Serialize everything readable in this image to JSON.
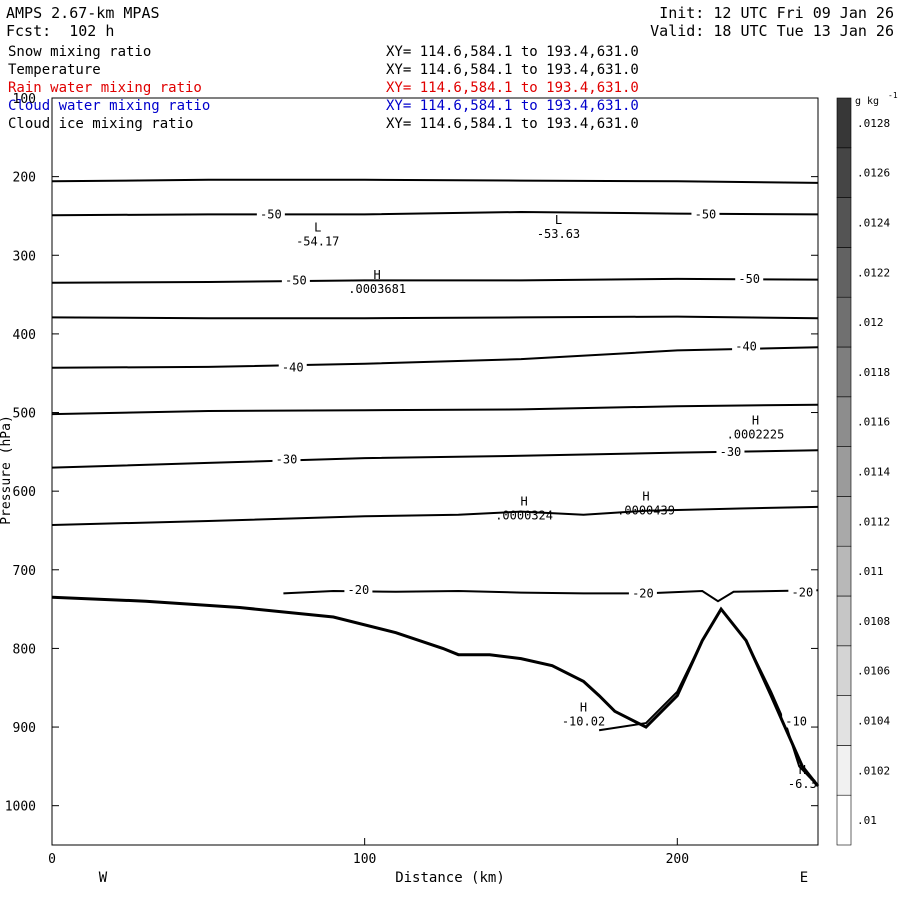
{
  "header": {
    "model": "AMPS 2.67-km MPAS",
    "forecast": "Fcst:  102 h",
    "init": "Init: 12 UTC Fri 09 Jan 26",
    "valid": "Valid: 18 UTC Tue 13 Jan 26"
  },
  "fields": [
    {
      "name": "Snow mixing ratio",
      "xy": "XY= 114.6,584.1 to 193.4,631.0",
      "color": "#000000"
    },
    {
      "name": "Temperature",
      "xy": "XY= 114.6,584.1 to 193.4,631.0",
      "color": "#000000"
    },
    {
      "name": "Rain water mixing ratio",
      "xy": "XY= 114.6,584.1 to 193.4,631.0",
      "color": "#e00000"
    },
    {
      "name": "Cloud water mixing ratio",
      "xy": "XY= 114.6,584.1 to 193.4,631.0",
      "color": "#0000cc"
    },
    {
      "name": "Cloud ice mixing ratio",
      "xy": "XY= 114.6,584.1 to 193.4,631.0",
      "color": "#000000"
    }
  ],
  "chart_data": {
    "type": "cross-section contour",
    "xlabel": "Distance (km)",
    "ylabel": "Pressure (hPa)",
    "xlim": [
      0,
      245
    ],
    "ylim": [
      1050,
      100
    ],
    "x_ticks": [
      0,
      100,
      200
    ],
    "y_ticks": [
      200,
      300,
      400,
      500,
      600,
      700,
      800,
      900,
      1000
    ],
    "y_tick_top_label": "100",
    "west_label": "W",
    "east_label": "E",
    "temperature_contours": [
      {
        "label": "",
        "points": [
          [
            0,
            206
          ],
          [
            50,
            204
          ],
          [
            100,
            204
          ],
          [
            150,
            205
          ],
          [
            200,
            206
          ],
          [
            245,
            208
          ]
        ]
      },
      {
        "label": "-50",
        "label_positions": [
          [
            70,
            248
          ],
          [
            209,
            248
          ]
        ],
        "points": [
          [
            0,
            249
          ],
          [
            50,
            248
          ],
          [
            100,
            248
          ],
          [
            150,
            245
          ],
          [
            200,
            247
          ],
          [
            245,
            248
          ]
        ]
      },
      {
        "label": "-50",
        "label_positions": [
          [
            78,
            332
          ],
          [
            223,
            330
          ]
        ],
        "points": [
          [
            0,
            335
          ],
          [
            50,
            334
          ],
          [
            100,
            332
          ],
          [
            150,
            332
          ],
          [
            200,
            330
          ],
          [
            245,
            331
          ]
        ]
      },
      {
        "label": "",
        "points": [
          [
            0,
            379
          ],
          [
            50,
            380
          ],
          [
            100,
            380
          ],
          [
            150,
            379
          ],
          [
            200,
            378
          ],
          [
            245,
            380
          ]
        ]
      },
      {
        "label": "-40",
        "label_positions": [
          [
            77,
            443
          ],
          [
            222,
            416
          ]
        ],
        "points": [
          [
            0,
            443
          ],
          [
            50,
            442
          ],
          [
            100,
            438
          ],
          [
            150,
            432
          ],
          [
            200,
            421
          ],
          [
            245,
            417
          ]
        ]
      },
      {
        "label": "",
        "points": [
          [
            0,
            502
          ],
          [
            50,
            498
          ],
          [
            100,
            497
          ],
          [
            150,
            496
          ],
          [
            200,
            492
          ],
          [
            245,
            490
          ]
        ]
      },
      {
        "label": "-30",
        "label_positions": [
          [
            75,
            560
          ],
          [
            217,
            550
          ]
        ],
        "points": [
          [
            0,
            570
          ],
          [
            50,
            564
          ],
          [
            100,
            558
          ],
          [
            150,
            555
          ],
          [
            200,
            551
          ],
          [
            245,
            548
          ]
        ]
      },
      {
        "label": "",
        "points": [
          [
            0,
            643
          ],
          [
            50,
            638
          ],
          [
            100,
            632
          ],
          [
            130,
            630
          ],
          [
            150,
            626
          ],
          [
            170,
            630
          ],
          [
            190,
            625
          ],
          [
            220,
            622
          ],
          [
            245,
            620
          ]
        ]
      },
      {
        "label": "-20",
        "label_positions": [
          [
            98,
            726
          ],
          [
            189,
            730
          ],
          [
            240,
            729
          ]
        ],
        "points": [
          [
            74,
            730
          ],
          [
            90,
            727
          ],
          [
            110,
            728
          ],
          [
            130,
            727
          ],
          [
            150,
            729
          ],
          [
            170,
            730
          ],
          [
            190,
            730
          ],
          [
            208,
            727
          ],
          [
            213,
            740
          ],
          [
            218,
            728
          ],
          [
            245,
            726
          ]
        ]
      },
      {
        "label": "-10",
        "label_positions": [
          [
            238,
            893
          ]
        ],
        "points": [
          [
            175,
            904
          ],
          [
            190,
            895
          ],
          [
            200,
            855
          ],
          [
            208,
            790
          ],
          [
            214,
            750
          ],
          [
            222,
            790
          ],
          [
            230,
            855
          ],
          [
            235,
            900
          ],
          [
            239,
            950
          ],
          [
            245,
            975
          ]
        ]
      }
    ],
    "extrema": [
      {
        "type": "L",
        "value": "-54.17",
        "x": 85,
        "p": 270
      },
      {
        "type": "L",
        "value": "-53.63",
        "x": 162,
        "p": 260
      },
      {
        "type": "H",
        "value": ".0003681",
        "x": 104,
        "p": 330
      },
      {
        "type": "H",
        "value": ".0002225",
        "x": 225,
        "p": 515
      },
      {
        "type": "H",
        "value": ".0000324",
        "x": 151,
        "p": 618
      },
      {
        "type": "H",
        "value": ".0000439",
        "x": 190,
        "p": 612
      },
      {
        "type": "H",
        "value": "-10.02",
        "x": 170,
        "p": 880
      },
      {
        "type": "H",
        "value": "-6.3",
        "x": 240,
        "p": 960
      }
    ],
    "terrain": [
      [
        0,
        735
      ],
      [
        30,
        740
      ],
      [
        60,
        748
      ],
      [
        90,
        760
      ],
      [
        110,
        780
      ],
      [
        125,
        800
      ],
      [
        130,
        808
      ],
      [
        140,
        808
      ],
      [
        150,
        813
      ],
      [
        160,
        822
      ],
      [
        170,
        842
      ],
      [
        175,
        860
      ],
      [
        180,
        880
      ],
      [
        190,
        900
      ],
      [
        200,
        860
      ],
      [
        208,
        790
      ],
      [
        214,
        750
      ],
      [
        222,
        790
      ],
      [
        230,
        860
      ],
      [
        235,
        905
      ],
      [
        240,
        950
      ],
      [
        245,
        975
      ]
    ],
    "colorbar": {
      "unit": "g kg",
      "unit_exp": "-1",
      "labels": [
        ".01",
        ".0102",
        ".0104",
        ".0106",
        ".0108",
        ".011",
        ".0112",
        ".0114",
        ".0116",
        ".0118",
        ".012",
        ".0122",
        ".0124",
        ".0126",
        ".0128"
      ]
    }
  }
}
